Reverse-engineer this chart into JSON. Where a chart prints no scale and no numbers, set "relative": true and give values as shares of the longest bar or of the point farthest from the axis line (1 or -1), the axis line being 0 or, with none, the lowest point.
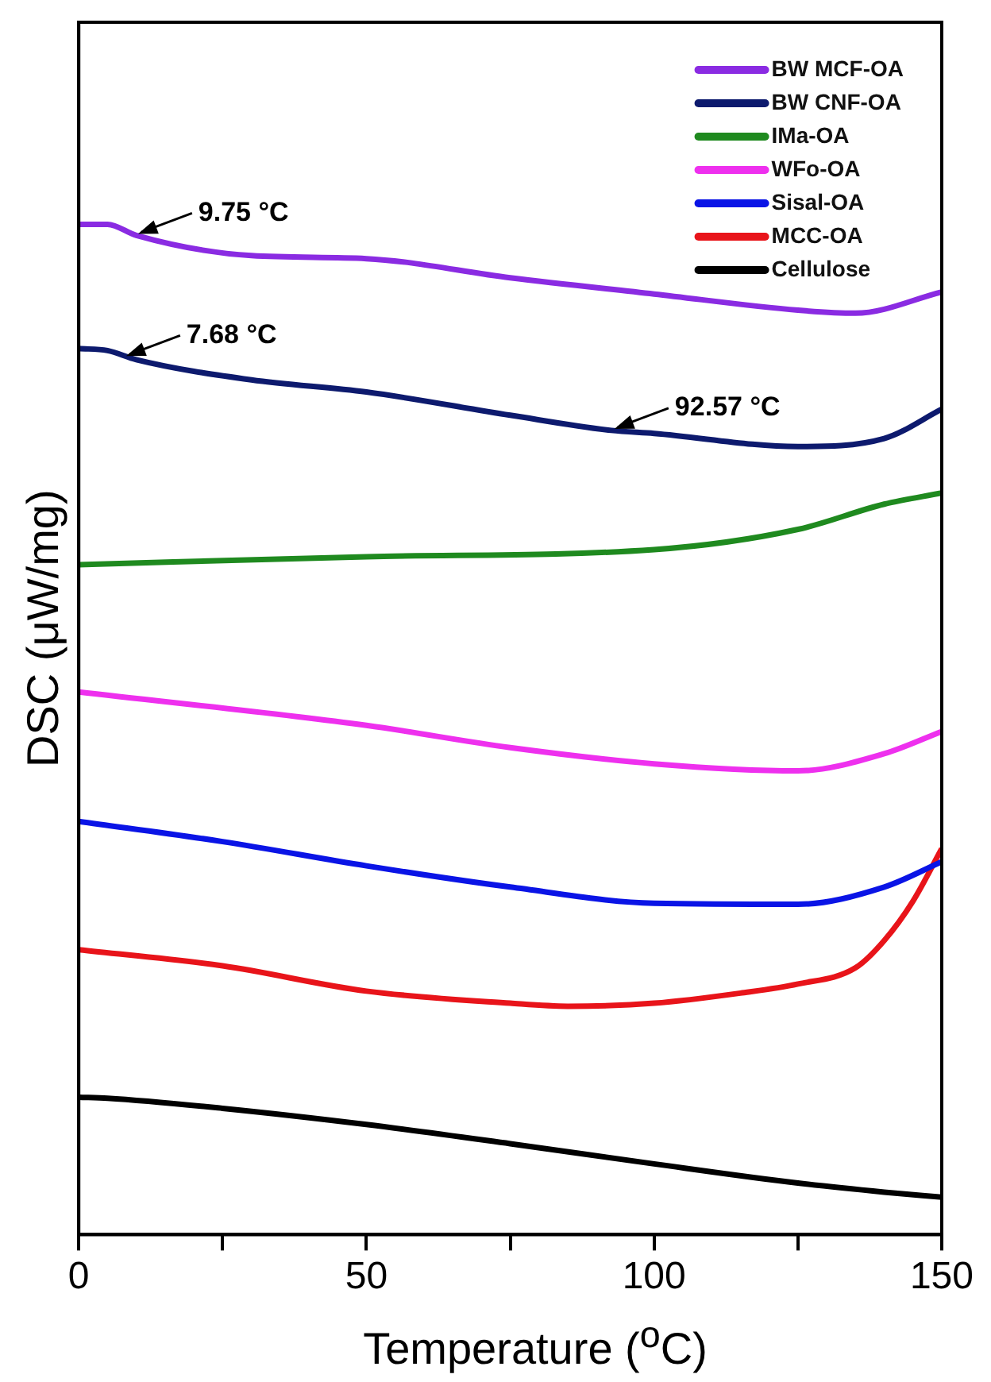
{
  "chart_data": {
    "type": "line",
    "relative": true,
    "xlabel": "Temperature ($^{o}$C)",
    "ylabel": "DSC (μW/mg)",
    "xlim": [
      0,
      150
    ],
    "xticks": [
      0,
      {
        "value": 25,
        "label": null
      },
      50,
      {
        "value": 75,
        "label": null
      },
      100,
      {
        "value": 125,
        "label": null
      },
      150
    ],
    "legend": "top right",
    "grid": false,
    "marker": "none",
    "line_style": "solid",
    "annotations": [
      {
        "text": "9.75 °C",
        "x": 9.75,
        "y": 0.989
      },
      {
        "text": "7.68 °C",
        "x": 7.68,
        "y": 0.868
      },
      {
        "text": "92.57 °C",
        "x": 92.57,
        "y": 0.796
      }
    ],
    "series": [
      {
        "name": "BW MCF-OA",
        "color": "#8a2be2",
        "x": [
          0,
          5,
          10,
          30,
          50,
          75,
          100,
          125,
          135,
          150
        ],
        "values": [
          1.0,
          1.0,
          0.989,
          0.969,
          0.966,
          0.947,
          0.931,
          0.915,
          0.912,
          0.933
        ]
      },
      {
        "name": "BW CNF-OA",
        "color": "#0d1a6e",
        "x": [
          0,
          5,
          10,
          30,
          50,
          75,
          92.57,
          100,
          125,
          140,
          150
        ],
        "values": [
          0.877,
          0.875,
          0.866,
          0.846,
          0.834,
          0.811,
          0.796,
          0.793,
          0.78,
          0.788,
          0.817
        ]
      },
      {
        "name": "IMa-OA",
        "color": "#1f8a1f",
        "x": [
          0,
          50,
          100,
          125,
          140,
          150
        ],
        "values": [
          0.663,
          0.671,
          0.678,
          0.698,
          0.723,
          0.734
        ]
      },
      {
        "name": "WFo-OA",
        "color": "#ee30ee",
        "x": [
          0,
          50,
          75,
          100,
          125,
          140,
          150
        ],
        "values": [
          0.537,
          0.504,
          0.482,
          0.466,
          0.459,
          0.476,
          0.498
        ]
      },
      {
        "name": "Sisal-OA",
        "color": "#0a14e6",
        "x": [
          0,
          25,
          50,
          75,
          100,
          125,
          140,
          150
        ],
        "values": [
          0.409,
          0.389,
          0.365,
          0.344,
          0.328,
          0.327,
          0.344,
          0.369
        ]
      },
      {
        "name": "MCC-OA",
        "color": "#e8141a",
        "x": [
          0,
          25,
          50,
          75,
          85,
          100,
          115,
          125,
          135,
          140,
          145,
          150
        ],
        "values": [
          0.282,
          0.266,
          0.241,
          0.229,
          0.226,
          0.229,
          0.239,
          0.248,
          0.264,
          0.291,
          0.33,
          0.382
        ]
      },
      {
        "name": "Cellulose",
        "color": "#000000",
        "x": [
          0,
          5,
          25,
          50,
          75,
          100,
          125,
          140,
          150
        ],
        "values": [
          0.136,
          0.135,
          0.125,
          0.109,
          0.09,
          0.07,
          0.051,
          0.042,
          0.037
        ]
      }
    ]
  }
}
